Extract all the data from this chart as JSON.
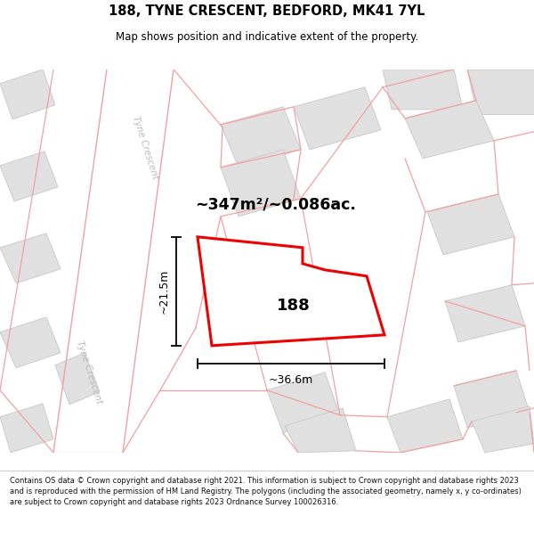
{
  "title_line1": "188, TYNE CRESCENT, BEDFORD, MK41 7YL",
  "title_line2": "Map shows position and indicative extent of the property.",
  "area_label": "~347m²/~0.086ac.",
  "property_number": "188",
  "dim_width": "~36.6m",
  "dim_height": "~21.5m",
  "street_label_upper": "Tyne Crescent",
  "street_label_lower": "Tyne Crescent",
  "footer_text": "Contains OS data © Crown copyright and database right 2021. This information is subject to Crown copyright and database rights 2023 and is reproduced with the permission of HM Land Registry. The polygons (including the associated geometry, namely x, y co-ordinates) are subject to Crown copyright and database rights 2023 Ordnance Survey 100026316.",
  "map_bg": "#f7f7f7",
  "road_color": "#f2a0a0",
  "building_fill": "#e0e0e0",
  "building_edge": "#cccccc",
  "property_fill": "#ffffff",
  "property_edge": "#ee0000",
  "dim_color": "#111111",
  "footer_color": "#111111",
  "street_color": "#bbbbbb"
}
